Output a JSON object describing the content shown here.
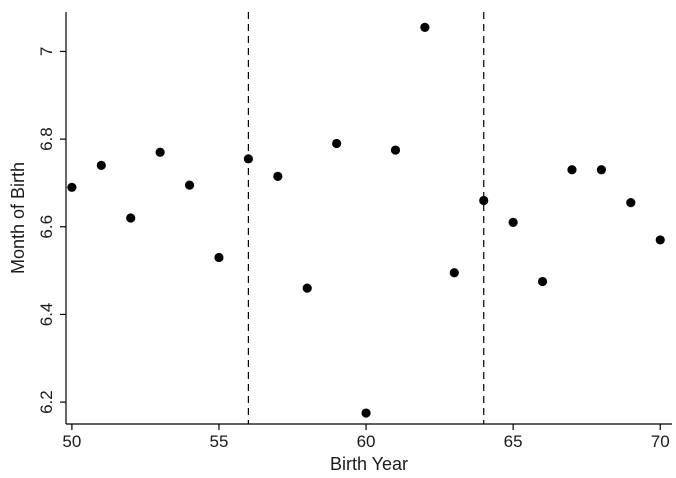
{
  "chart_data": {
    "type": "scatter",
    "title": "",
    "xlabel": "Birth Year",
    "ylabel": "Month of Birth",
    "xlim": [
      49.8,
      70.4
    ],
    "ylim": [
      6.15,
      7.09
    ],
    "xticks": [
      50,
      55,
      60,
      65,
      70
    ],
    "yticks": [
      6.2,
      6.4,
      6.6,
      6.8,
      7
    ],
    "ytick_labels": [
      "6.2",
      "6.4",
      "6.6",
      "6.8",
      "7"
    ],
    "grid": false,
    "reference_lines_x": [
      56,
      64
    ],
    "reference_line_style": "dashed",
    "marker_color": "#000000",
    "series": [
      {
        "x": [
          50,
          51,
          52,
          53,
          54,
          55,
          56,
          57,
          58,
          59,
          60,
          61,
          62,
          63,
          64,
          65,
          66,
          67,
          68,
          69,
          70
        ],
        "y": [
          6.69,
          6.74,
          6.62,
          6.77,
          6.695,
          6.53,
          6.755,
          6.715,
          6.46,
          6.79,
          6.175,
          6.775,
          7.055,
          6.495,
          6.66,
          6.61,
          6.475,
          6.73,
          6.73,
          6.655,
          6.57
        ]
      }
    ]
  }
}
